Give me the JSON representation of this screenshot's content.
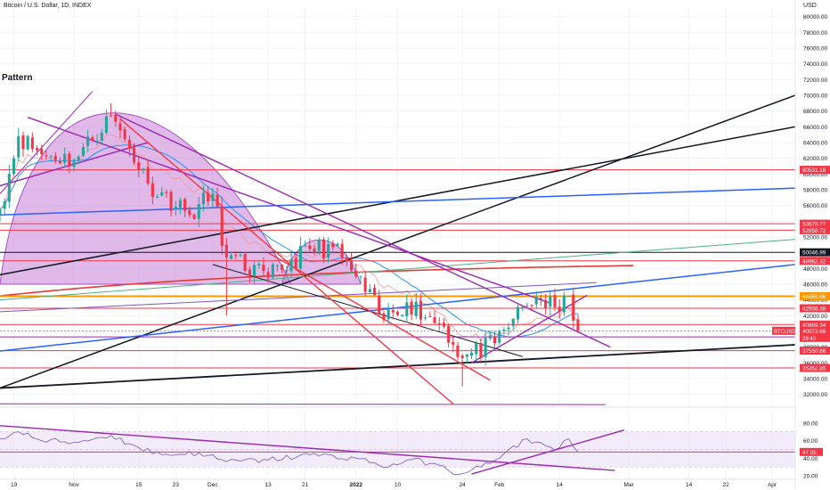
{
  "header": {
    "symbol": "Bitcoin / U.S. Dollar, 1D, INDEX",
    "currency": "USD",
    "pattern_title": "Pattern"
  },
  "chart_data": {
    "type": "candlestick",
    "price_axis": {
      "range": [
        30600,
        81200
      ],
      "ticks": [
        32000,
        34000,
        36000,
        38000,
        40000,
        42000,
        44000,
        46000,
        48000,
        50000,
        52000,
        54000,
        56000,
        58000,
        60000,
        62000,
        64000,
        66000,
        68000,
        70000,
        72000,
        74000,
        76000,
        78000,
        80000
      ],
      "tick_labels": [
        "32000.00",
        "34000.00",
        "36000.00",
        "38000.00",
        "40000.00",
        "42000.00",
        "44000.00",
        "46000.00",
        "48000.00",
        "50000.00",
        "52000.00",
        "54000.00",
        "56000.00",
        "58000.00",
        "60000.00",
        "62000.00",
        "64000.00",
        "66000.00",
        "68000.00",
        "70000.00",
        "72000.00",
        "74000.00",
        "76000.00",
        "78000.00",
        "80000.00"
      ]
    },
    "time_axis": {
      "start": "2021-10-16",
      "end": "2022-04-06",
      "ticks": [
        {
          "date": "2021-10-19",
          "label": "19"
        },
        {
          "date": "2021-11-01",
          "label": "Nov"
        },
        {
          "date": "2021-11-15",
          "label": "15"
        },
        {
          "date": "2021-11-23",
          "label": "23"
        },
        {
          "date": "2021-12-01",
          "label": "Dec"
        },
        {
          "date": "2021-12-13",
          "label": "13"
        },
        {
          "date": "2021-12-21",
          "label": "21"
        },
        {
          "date": "2022-01-01",
          "label": "2022"
        },
        {
          "date": "2022-01-10",
          "label": "10"
        },
        {
          "date": "2022-01-24",
          "label": "24"
        },
        {
          "date": "2022-02-01",
          "label": "Feb"
        },
        {
          "date": "2022-02-14",
          "label": "14"
        },
        {
          "date": "2022-03-01",
          "label": "Mar"
        },
        {
          "date": "2022-03-14",
          "label": "14"
        },
        {
          "date": "2022-03-22",
          "label": "22"
        },
        {
          "date": "2022-04-01",
          "label": "Apr"
        }
      ]
    },
    "key_closes": [
      {
        "date": "2021-10-16",
        "close": 55500
      },
      {
        "date": "2021-10-20",
        "close": 64800
      },
      {
        "date": "2021-10-25",
        "close": 62500
      },
      {
        "date": "2021-11-01",
        "close": 61800
      },
      {
        "date": "2021-11-09",
        "close": 67400
      },
      {
        "date": "2021-11-12",
        "close": 64400
      },
      {
        "date": "2021-11-17",
        "close": 58800
      },
      {
        "date": "2021-11-26",
        "close": 54800
      },
      {
        "date": "2021-12-01",
        "close": 57500
      },
      {
        "date": "2021-12-04",
        "close": 49400
      },
      {
        "date": "2021-12-13",
        "close": 46800
      },
      {
        "date": "2021-12-22",
        "close": 50500
      },
      {
        "date": "2021-12-27",
        "close": 50700
      },
      {
        "date": "2022-01-01",
        "close": 47000
      },
      {
        "date": "2022-01-07",
        "close": 41500
      },
      {
        "date": "2022-01-12",
        "close": 43700
      },
      {
        "date": "2022-01-20",
        "close": 40600
      },
      {
        "date": "2022-01-24",
        "close": 36600
      },
      {
        "date": "2022-01-31",
        "close": 38500
      },
      {
        "date": "2022-02-04",
        "close": 41600
      },
      {
        "date": "2022-02-09",
        "close": 44400
      },
      {
        "date": "2022-02-14",
        "close": 42500
      },
      {
        "date": "2022-02-16",
        "close": 44500
      },
      {
        "date": "2022-02-18",
        "close": 40073.66
      }
    ],
    "current_price": {
      "value": 40073.66,
      "label": "40073.66",
      "symbol": "BTCUSD",
      "countdown": "29:40",
      "color": "#f23645"
    },
    "horizontal_levels": [
      {
        "price": 60531.18,
        "label": "60531.18",
        "color": "#f23645"
      },
      {
        "price": 53675.77,
        "label": "53675.77",
        "color": "#f23645"
      },
      {
        "price": 52858.72,
        "label": "52858.72",
        "color": "#f23645"
      },
      {
        "price": 50046.99,
        "label": "50046.99",
        "color": "#131722"
      },
      {
        "price": 48962.32,
        "label": "48962.32",
        "color": "#f23645"
      },
      {
        "price": 44469.66,
        "label": "44469.66",
        "color": "#ff9800"
      },
      {
        "price": 42938.38,
        "label": "42938.38",
        "color": "#f23645"
      },
      {
        "price": 40869.34,
        "label": "40869.34",
        "color": "#f23645"
      },
      {
        "price": 39300.53,
        "label": "39300.53",
        "color": "#9c27b0"
      },
      {
        "price": 37550.86,
        "label": "37550.86",
        "color": "#f23645"
      },
      {
        "price": 35352.85,
        "label": "35352.85",
        "color": "#f23645"
      }
    ],
    "rsi": {
      "range": [
        18,
        92
      ],
      "ticks": [
        20,
        40,
        60,
        80
      ],
      "tick_labels": [
        "20.00",
        "40.00",
        "60.00",
        "80.00"
      ],
      "band": [
        30,
        70
      ],
      "current": {
        "value": 47.05,
        "label": "47.05"
      },
      "points": [
        {
          "date": "2021-10-16",
          "value": 62
        },
        {
          "date": "2021-10-20",
          "value": 70
        },
        {
          "date": "2021-10-25",
          "value": 60
        },
        {
          "date": "2021-11-01",
          "value": 58
        },
        {
          "date": "2021-11-09",
          "value": 66
        },
        {
          "date": "2021-11-15",
          "value": 52
        },
        {
          "date": "2021-11-20",
          "value": 44
        },
        {
          "date": "2021-11-28",
          "value": 46
        },
        {
          "date": "2021-12-04",
          "value": 36
        },
        {
          "date": "2021-12-13",
          "value": 38
        },
        {
          "date": "2021-12-22",
          "value": 44
        },
        {
          "date": "2022-01-01",
          "value": 40
        },
        {
          "date": "2022-01-08",
          "value": 30
        },
        {
          "date": "2022-01-12",
          "value": 38
        },
        {
          "date": "2022-01-18",
          "value": 34
        },
        {
          "date": "2022-01-22",
          "value": 22
        },
        {
          "date": "2022-01-28",
          "value": 30
        },
        {
          "date": "2022-02-01",
          "value": 40
        },
        {
          "date": "2022-02-07",
          "value": 62
        },
        {
          "date": "2022-02-11",
          "value": 54
        },
        {
          "date": "2022-02-14",
          "value": 52
        },
        {
          "date": "2022-02-16",
          "value": 62
        },
        {
          "date": "2022-02-18",
          "value": 47
        }
      ]
    },
    "colors": {
      "up": "#26a69a",
      "down": "#f23645",
      "grid": "#f0f3fa",
      "axis_text": "#131722",
      "pattern_fill": "#c77fd6",
      "trend_purple": "#9c27b0",
      "trend_blue": "#2962ff",
      "trend_black": "#131722",
      "trend_red": "#f23645",
      "trend_green": "#4caf83",
      "ma_blue": "#2196f3",
      "ma_red": "#e53935"
    }
  }
}
